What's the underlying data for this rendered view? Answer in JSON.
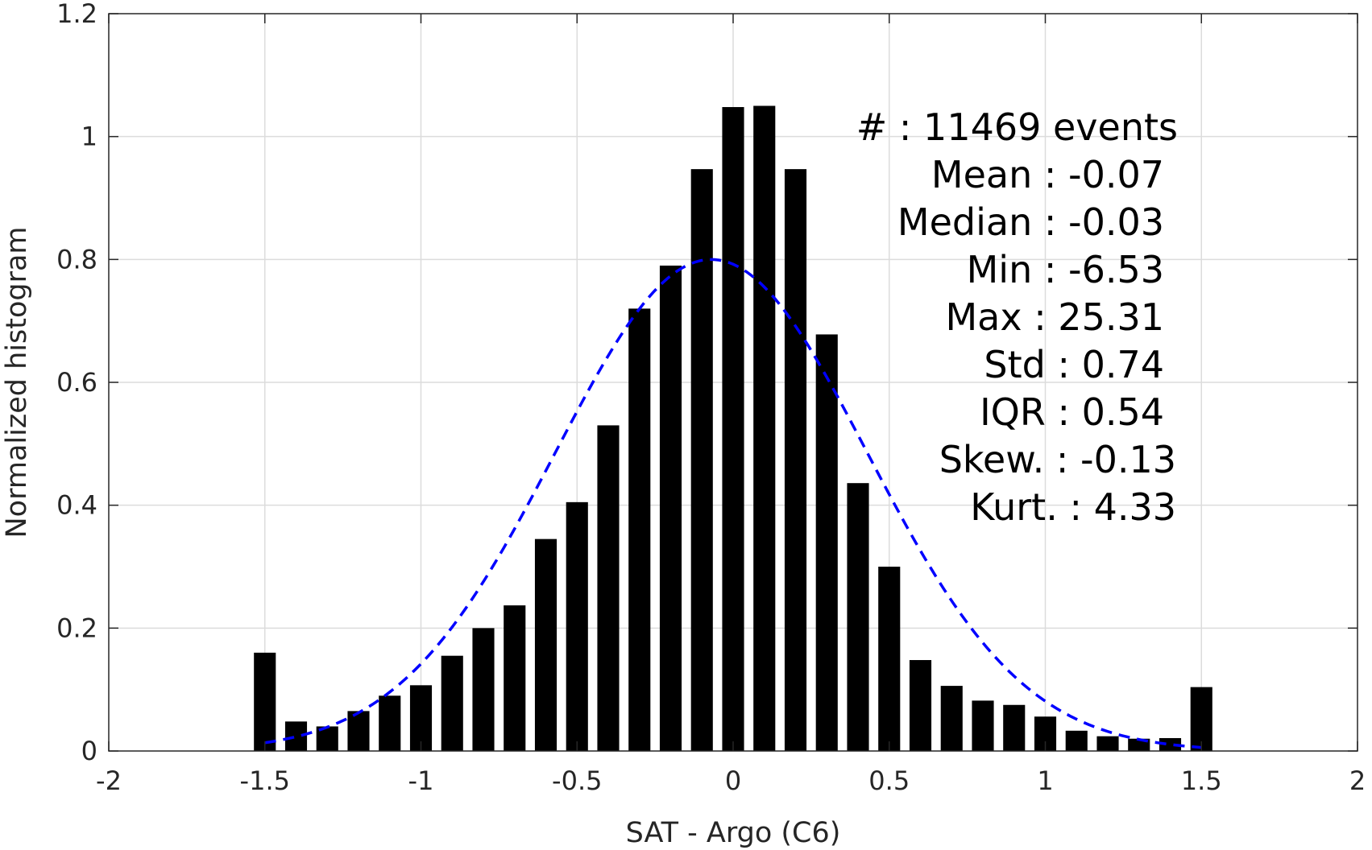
{
  "chart_data": {
    "type": "bar",
    "xlabel": "SAT - Argo (C6)",
    "ylabel": "Normalized histogram",
    "xlim": [
      -2,
      2
    ],
    "ylim": [
      0,
      1.2
    ],
    "grid": true,
    "x_ticks": [
      "-2",
      "-1.5",
      "-1",
      "-0.5",
      "0",
      "0.5",
      "1",
      "1.5",
      "2"
    ],
    "y_ticks": [
      "0",
      "0.2",
      "0.4",
      "0.6",
      "0.8",
      "1",
      "1.2"
    ],
    "x_tick_values": [
      -2,
      -1.5,
      -1,
      -0.5,
      0,
      0.5,
      1,
      1.5,
      2
    ],
    "y_tick_values": [
      0,
      0.2,
      0.4,
      0.6,
      0.8,
      1,
      1.2
    ],
    "bar_width": 0.07,
    "series": [
      {
        "type": "bar",
        "color": "#000000",
        "x": [
          -1.5,
          -1.4,
          -1.3,
          -1.2,
          -1.1,
          -1.0,
          -0.9,
          -0.8,
          -0.7,
          -0.6,
          -0.5,
          -0.4,
          -0.3,
          -0.2,
          -0.1,
          0.0,
          0.1,
          0.2,
          0.3,
          0.4,
          0.5,
          0.6,
          0.7,
          0.8,
          0.9,
          1.0,
          1.1,
          1.2,
          1.3,
          1.4,
          1.5
        ],
        "values": [
          0.16,
          0.048,
          0.04,
          0.065,
          0.09,
          0.107,
          0.155,
          0.2,
          0.237,
          0.345,
          0.405,
          0.53,
          0.72,
          0.79,
          0.947,
          1.048,
          1.05,
          0.947,
          0.678,
          0.436,
          0.3,
          0.148,
          0.106,
          0.082,
          0.075,
          0.056,
          0.033,
          0.024,
          0.02,
          0.021,
          0.104
        ]
      },
      {
        "type": "line",
        "style": "dashed",
        "color": "#0000ff",
        "note_fit": "gaussian",
        "mean": -0.07,
        "std": 0.5,
        "peak": 0.8,
        "x_start": -1.5,
        "x_end": 1.5
      }
    ],
    "stats_labels": [
      "#  : 11469 events",
      "Mean : -0.07",
      "Median : -0.03",
      "Min : -6.53",
      "Max : 25.31",
      "Std : 0.74",
      "IQR : 0.54",
      "Skew. : -0.13",
      "Kurt. : 4.33"
    ]
  }
}
